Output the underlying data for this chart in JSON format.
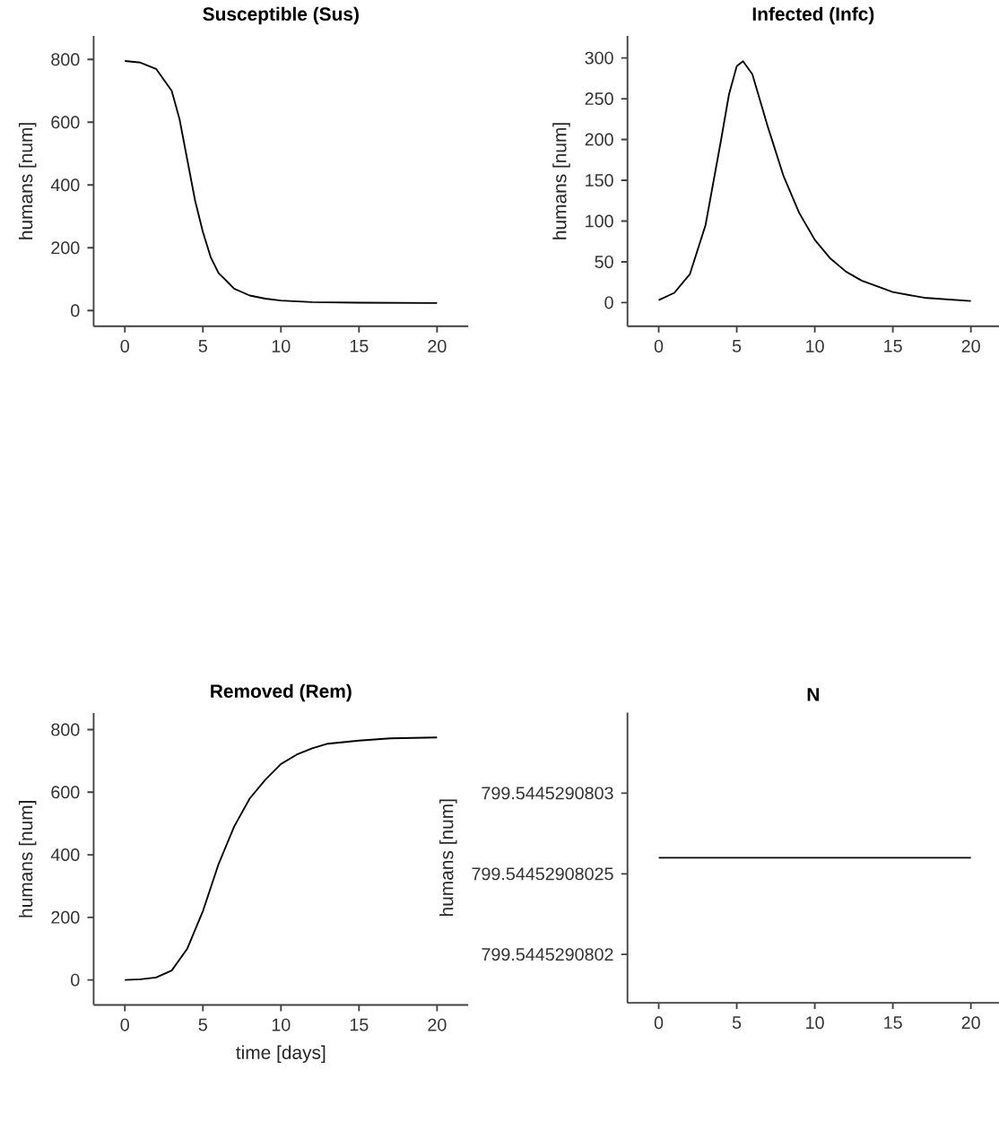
{
  "chart_data": [
    {
      "type": "line",
      "title": "Susceptible (Sus)",
      "ylabel": "humans [num]",
      "x": [
        0,
        1,
        2,
        3,
        3.5,
        4,
        4.5,
        5,
        5.5,
        6,
        7,
        8,
        9,
        10,
        12,
        15,
        20
      ],
      "series": [
        {
          "color": "#000000",
          "values": [
            795,
            790,
            770,
            700,
            610,
            480,
            350,
            250,
            170,
            120,
            70,
            48,
            38,
            32,
            27,
            25,
            24
          ]
        }
      ],
      "xlim": [
        -2,
        22
      ],
      "ylim": [
        -50,
        875
      ],
      "xticks": [
        0,
        5,
        10,
        15,
        20
      ],
      "yticks": [
        0,
        200,
        400,
        600,
        800
      ]
    },
    {
      "type": "line",
      "title": "Infected (Infc)",
      "ylabel": "humans [num]",
      "x": [
        0,
        1,
        2,
        3,
        4,
        4.5,
        5,
        5.4,
        6,
        7,
        8,
        9,
        10,
        11,
        12,
        13,
        15,
        17,
        20
      ],
      "series": [
        {
          "color": "#000000",
          "values": [
            3,
            12,
            35,
            95,
            200,
            255,
            290,
            296,
            280,
            215,
            155,
            110,
            77,
            54,
            38,
            27,
            13,
            6,
            2
          ]
        }
      ],
      "xlim": [
        -2,
        21.8
      ],
      "ylim": [
        -29,
        327
      ],
      "xticks": [
        0,
        5,
        10,
        15,
        20
      ],
      "yticks": [
        0,
        50,
        100,
        150,
        200,
        250,
        300
      ]
    },
    {
      "type": "line",
      "title": "Removed (Rem)",
      "xlabel": "time [days]",
      "ylabel": "humans [num]",
      "x": [
        0,
        1,
        2,
        3,
        4,
        5,
        6,
        7,
        8,
        9,
        10,
        11,
        12,
        13,
        15,
        17,
        20
      ],
      "series": [
        {
          "color": "#000000",
          "values": [
            0,
            2,
            8,
            30,
            100,
            220,
            370,
            490,
            580,
            640,
            690,
            720,
            740,
            755,
            765,
            772,
            775
          ]
        }
      ],
      "xlim": [
        -2,
        22
      ],
      "ylim": [
        -80,
        853
      ],
      "xticks": [
        0,
        5,
        10,
        15,
        20
      ],
      "yticks": [
        0,
        200,
        400,
        600,
        800
      ]
    },
    {
      "type": "line",
      "title": "N",
      "ylabel": "humans [num]",
      "x": [
        0,
        5,
        10,
        15,
        20
      ],
      "series": [
        {
          "color": "#000000",
          "values": [
            799.54452908026,
            799.54452908026,
            799.54452908026,
            799.54452908026,
            799.54452908026
          ]
        }
      ],
      "xlim": [
        -2,
        21.8
      ],
      "ylim": [
        799.54452908017,
        799.54452908035
      ],
      "xticks": [
        0,
        5,
        10,
        15,
        20
      ],
      "yticks": [
        {
          "value": 799.5445290802,
          "label": "799.5445290802"
        },
        {
          "value": 799.54452908025,
          "label": "799.54452908025"
        },
        {
          "value": 799.5445290803,
          "label": "799.5445290803"
        }
      ]
    }
  ]
}
